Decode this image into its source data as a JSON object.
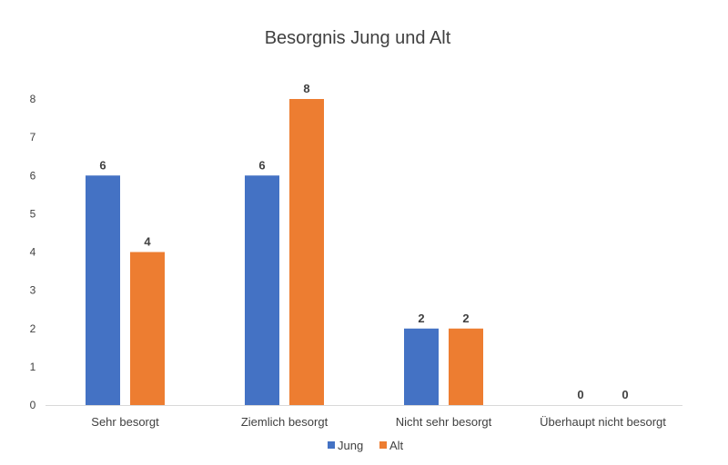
{
  "chart_data": {
    "type": "bar",
    "title": "Besorgnis Jung und Alt",
    "xlabel": "",
    "ylabel": "",
    "categories": [
      "Sehr besorgt",
      "Ziemlich besorgt",
      "Nicht sehr besorgt",
      "Überhaupt nicht besorgt"
    ],
    "series": [
      {
        "name": "Jung",
        "values": [
          6,
          6,
          2,
          0
        ],
        "color": "#4472C4"
      },
      {
        "name": "Alt",
        "values": [
          4,
          8,
          2,
          0
        ],
        "color": "#ED7D31"
      }
    ],
    "ylim": [
      0,
      8
    ],
    "yticks": [
      "0",
      "1",
      "2",
      "3",
      "4",
      "5",
      "6",
      "7",
      "8"
    ],
    "grid": false,
    "legend": "bottom",
    "data_labels": true,
    "axis_color": "#D9D9D9"
  }
}
